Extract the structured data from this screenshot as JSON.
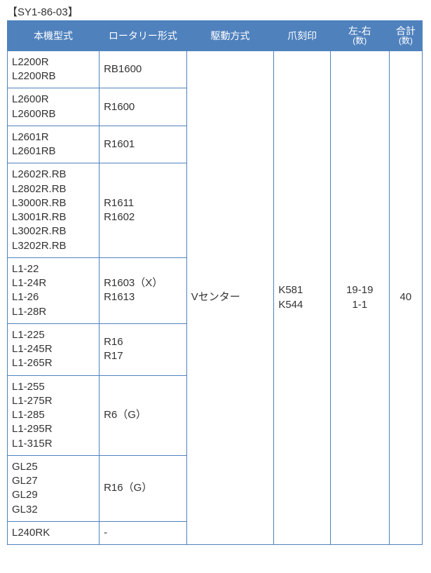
{
  "title": "【SY1-86-03】",
  "headers": {
    "model": "本機型式",
    "rotary": "ロータリー形式",
    "drive": "駆動方式",
    "stamp": "爪刻印",
    "lr": {
      "top": "左-右",
      "sub": "(数)"
    },
    "total": {
      "top": "合計",
      "sub": "(数)"
    }
  },
  "rows": [
    {
      "model": "L2200R\nL2200RB",
      "rotary": "RB1600"
    },
    {
      "model": "L2600R\nL2600RB",
      "rotary": "R1600"
    },
    {
      "model": "L2601R\nL2601RB",
      "rotary": "R1601"
    },
    {
      "model": "L2602R.RB\nL2802R.RB\nL3000R.RB\nL3001R.RB\nL3002R.RB\nL3202R.RB",
      "rotary": "R1611\nR1602"
    },
    {
      "model": "L1-22\nL1-24R\nL1-26\nL1-28R",
      "rotary": "R1603（X）\nR1613"
    },
    {
      "model": "L1-225\nL1-245R\nL1-265R",
      "rotary": "R16\nR17"
    },
    {
      "model": "L1-255\nL1-275R\nL1-285\nL1-295R\nL1-315R",
      "rotary": "R6（G）"
    },
    {
      "model": "GL25\nGL27\nGL29\nGL32",
      "rotary": "R16（G）"
    },
    {
      "model": "L240RK",
      "rotary": "-"
    }
  ],
  "merged": {
    "drive": "Vセンター",
    "stamp": "K581\nK544",
    "lr": "19-19\n1-1",
    "total": "40"
  },
  "style": {
    "header_bg": "#4f81bd",
    "header_fg": "#ffffff",
    "border": "#4f81bd",
    "text": "#333333",
    "page_bg": "#ffffff"
  }
}
